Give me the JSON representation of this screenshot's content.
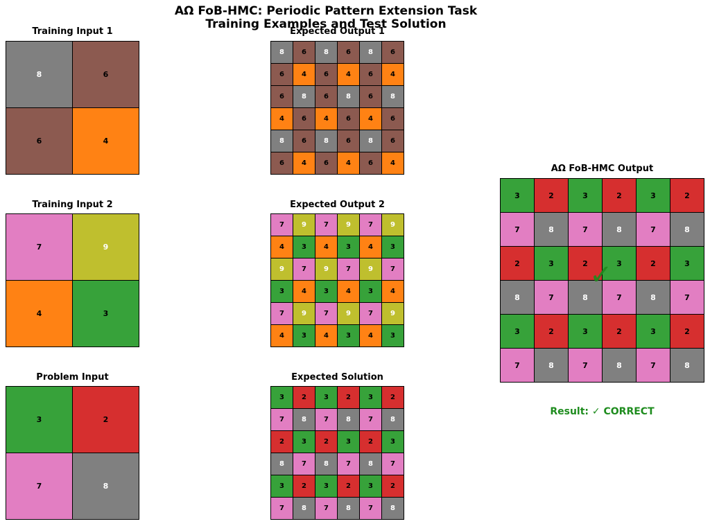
{
  "title_line1": "AΩ FoB-HMC: Periodic Pattern Extension Task",
  "title_line2": "Training Examples and Test Solution",
  "colors": {
    "2": "#d62f2f",
    "3": "#37a23a",
    "4": "#ff8214",
    "6": "#8c5a50",
    "7": "#e27ec2",
    "8": "#808080",
    "9": "#bfbf2e"
  },
  "light_text_values": [
    "8",
    "9"
  ],
  "panels": [
    {
      "id": "training-input-1",
      "title": "Training Input 1",
      "grid": [
        [
          "8",
          "6"
        ],
        [
          "6",
          "4"
        ]
      ]
    },
    {
      "id": "expected-output-1",
      "title": "Expected Output 1",
      "grid": [
        [
          "8",
          "6",
          "8",
          "6",
          "8",
          "6"
        ],
        [
          "6",
          "4",
          "6",
          "4",
          "6",
          "4"
        ],
        [
          "6",
          "8",
          "6",
          "8",
          "6",
          "8"
        ],
        [
          "4",
          "6",
          "4",
          "6",
          "4",
          "6"
        ],
        [
          "8",
          "6",
          "8",
          "6",
          "8",
          "6"
        ],
        [
          "6",
          "4",
          "6",
          "4",
          "6",
          "4"
        ]
      ]
    },
    {
      "id": "training-input-2",
      "title": "Training Input 2",
      "grid": [
        [
          "7",
          "9"
        ],
        [
          "4",
          "3"
        ]
      ]
    },
    {
      "id": "expected-output-2",
      "title": "Expected Output 2",
      "grid": [
        [
          "7",
          "9",
          "7",
          "9",
          "7",
          "9"
        ],
        [
          "4",
          "3",
          "4",
          "3",
          "4",
          "3"
        ],
        [
          "9",
          "7",
          "9",
          "7",
          "9",
          "7"
        ],
        [
          "3",
          "4",
          "3",
          "4",
          "3",
          "4"
        ],
        [
          "7",
          "9",
          "7",
          "9",
          "7",
          "9"
        ],
        [
          "4",
          "3",
          "4",
          "3",
          "4",
          "3"
        ]
      ]
    },
    {
      "id": "problem-input",
      "title": "Problem Input",
      "grid": [
        [
          "3",
          "2"
        ],
        [
          "7",
          "8"
        ]
      ]
    },
    {
      "id": "expected-solution",
      "title": "Expected Solution",
      "grid": [
        [
          "3",
          "2",
          "3",
          "2",
          "3",
          "2"
        ],
        [
          "7",
          "8",
          "7",
          "8",
          "7",
          "8"
        ],
        [
          "2",
          "3",
          "2",
          "3",
          "2",
          "3"
        ],
        [
          "8",
          "7",
          "8",
          "7",
          "8",
          "7"
        ],
        [
          "3",
          "2",
          "3",
          "2",
          "3",
          "2"
        ],
        [
          "7",
          "8",
          "7",
          "8",
          "7",
          "8"
        ]
      ]
    },
    {
      "id": "model-output",
      "title": "AΩ FoB-HMC Output",
      "grid": [
        [
          "3",
          "2",
          "3",
          "2",
          "3",
          "2"
        ],
        [
          "7",
          "8",
          "7",
          "8",
          "7",
          "8"
        ],
        [
          "2",
          "3",
          "2",
          "3",
          "2",
          "3"
        ],
        [
          "8",
          "7",
          "8",
          "7",
          "8",
          "7"
        ],
        [
          "3",
          "2",
          "3",
          "2",
          "3",
          "2"
        ],
        [
          "7",
          "8",
          "7",
          "8",
          "7",
          "8"
        ]
      ]
    }
  ],
  "overlay_mark": "✓",
  "result_text": "Result: ✓ CORRECT"
}
